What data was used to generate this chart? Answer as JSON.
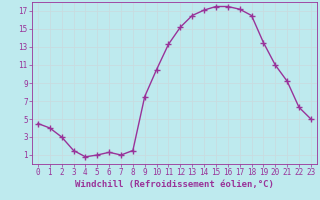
{
  "x": [
    0,
    1,
    2,
    3,
    4,
    5,
    6,
    7,
    8,
    9,
    10,
    11,
    12,
    13,
    14,
    15,
    16,
    17,
    18,
    19,
    20,
    21,
    22,
    23
  ],
  "y": [
    4.5,
    4.0,
    3.0,
    1.5,
    0.8,
    1.0,
    1.3,
    1.0,
    1.5,
    7.5,
    10.5,
    13.3,
    15.2,
    16.5,
    17.1,
    17.5,
    17.5,
    17.2,
    16.5,
    13.5,
    11.0,
    9.2,
    6.3,
    5.0
  ],
  "line_color": "#993399",
  "marker": "+",
  "marker_size": 4,
  "linewidth": 1.0,
  "xlabel": "Windchill (Refroidissement éolien,°C)",
  "xlabel_fontsize": 6.5,
  "xlim": [
    -0.5,
    23.5
  ],
  "ylim": [
    0,
    18
  ],
  "yticks": [
    1,
    3,
    5,
    7,
    9,
    11,
    13,
    15,
    17
  ],
  "xticks": [
    0,
    1,
    2,
    3,
    4,
    5,
    6,
    7,
    8,
    9,
    10,
    11,
    12,
    13,
    14,
    15,
    16,
    17,
    18,
    19,
    20,
    21,
    22,
    23
  ],
  "background_color": "#beeaee",
  "grid_color": "#c8dce0",
  "tick_color": "#993399",
  "label_color": "#993399",
  "tick_fontsize": 5.5
}
